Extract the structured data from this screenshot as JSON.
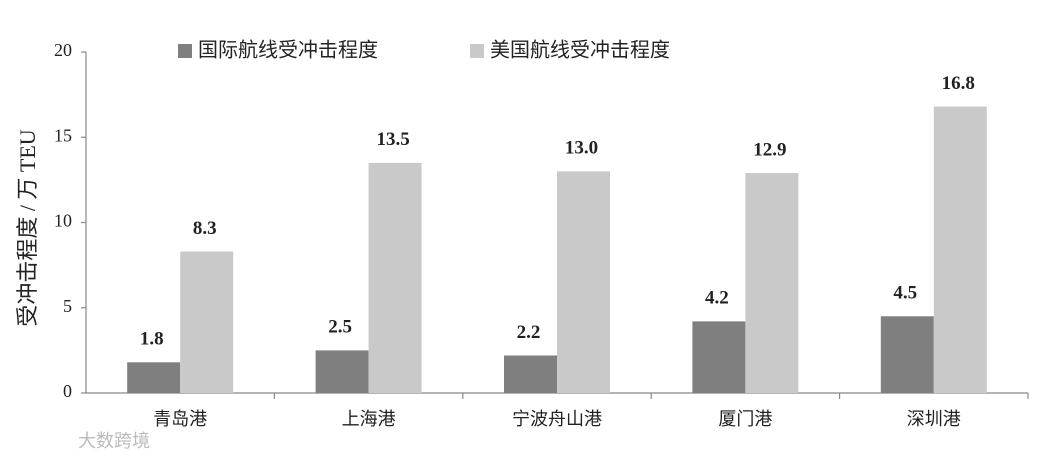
{
  "chart_data": {
    "type": "bar",
    "ylabel": "受冲击程度 / 万 TEU",
    "categories": [
      "青岛港",
      "上海港",
      "宁波舟山港",
      "厦门港",
      "深圳港"
    ],
    "series": [
      {
        "name": "国际航线受冲击程度",
        "color": "#7f7f7f",
        "values": [
          1.8,
          2.5,
          2.2,
          4.2,
          4.5
        ],
        "value_labels": [
          "1.8",
          "2.5",
          "2.2",
          "4.2",
          "4.5"
        ]
      },
      {
        "name": "美国航线受冲击程度",
        "color": "#c9c9c9",
        "values": [
          8.3,
          13.5,
          13,
          12.9,
          16.8
        ],
        "value_labels": [
          "8.3",
          "13.5",
          "13.0",
          "12.9",
          "16.8"
        ]
      }
    ],
    "ylim": [
      0,
      20
    ],
    "yticks": [
      0,
      5,
      10,
      15,
      20
    ],
    "grid": false,
    "legend": "top",
    "watermark": "大数跨境"
  }
}
